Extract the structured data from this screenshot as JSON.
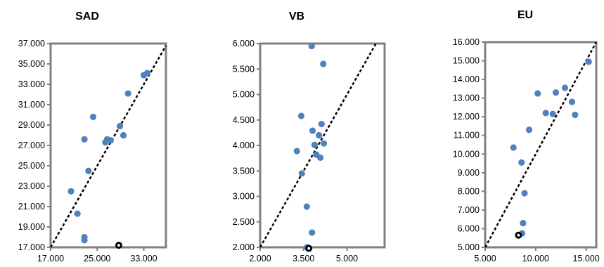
{
  "chart_data": [
    {
      "type": "scatter",
      "title": "SAD",
      "xlim": [
        17000,
        36800
      ],
      "ylim": [
        17000,
        37000
      ],
      "xticks": [
        17000,
        25000,
        33000
      ],
      "xtick_labels": [
        "17.000",
        "25.000",
        "33.000"
      ],
      "yticks": [
        17000,
        19000,
        21000,
        23000,
        25000,
        27000,
        29000,
        31000,
        33000,
        35000,
        37000
      ],
      "ytick_labels": [
        "17.000",
        "19.000",
        "21.000",
        "23.000",
        "25.000",
        "27.000",
        "29.000",
        "31.000",
        "33.000",
        "35.000",
        "37.000"
      ],
      "reference_line": "y = x",
      "series": [
        {
          "marker_color": "#4f81bd",
          "points": [
            {
              "x": 20500,
              "y": 22500
            },
            {
              "x": 21600,
              "y": 20300
            },
            {
              "x": 22800,
              "y": 27600
            },
            {
              "x": 22800,
              "y": 18000
            },
            {
              "x": 22800,
              "y": 17700
            },
            {
              "x": 23500,
              "y": 24500
            },
            {
              "x": 24300,
              "y": 29800
            },
            {
              "x": 26400,
              "y": 27300
            },
            {
              "x": 26700,
              "y": 27600
            },
            {
              "x": 27300,
              "y": 27500
            },
            {
              "x": 28900,
              "y": 28900
            },
            {
              "x": 29500,
              "y": 28000
            },
            {
              "x": 30300,
              "y": 32100
            },
            {
              "x": 33000,
              "y": 33900
            },
            {
              "x": 33600,
              "y": 34100
            }
          ]
        },
        {
          "marker_style": "highlighted",
          "points": [
            {
              "x": 28700,
              "y": 17200
            }
          ]
        }
      ]
    },
    {
      "type": "scatter",
      "title": "VB",
      "xlim": [
        2000,
        6300
      ],
      "ylim": [
        2000,
        6000
      ],
      "xticks": [
        2000,
        3500,
        5000
      ],
      "xtick_labels": [
        "2.000",
        "3.500",
        "5.000"
      ],
      "yticks": [
        2000,
        2500,
        3000,
        3500,
        4000,
        4500,
        5000,
        5500,
        6000
      ],
      "ytick_labels": [
        "2.000",
        "2.500",
        "3.000",
        "3.500",
        "4.000",
        "4.500",
        "5.000",
        "5.500",
        "6.000"
      ],
      "reference_line": "y = x",
      "series": [
        {
          "marker_color": "#4f81bd",
          "points": [
            {
              "x": 3270,
              "y": 3890
            },
            {
              "x": 3420,
              "y": 4580
            },
            {
              "x": 3440,
              "y": 3450
            },
            {
              "x": 3610,
              "y": 2800
            },
            {
              "x": 3620,
              "y": 2000
            },
            {
              "x": 3780,
              "y": 5950
            },
            {
              "x": 3790,
              "y": 2290
            },
            {
              "x": 3810,
              "y": 4290
            },
            {
              "x": 3880,
              "y": 4010
            },
            {
              "x": 3940,
              "y": 3820
            },
            {
              "x": 4030,
              "y": 4200
            },
            {
              "x": 4080,
              "y": 3760
            },
            {
              "x": 4120,
              "y": 4420
            },
            {
              "x": 4180,
              "y": 5600
            },
            {
              "x": 4200,
              "y": 4040
            }
          ]
        },
        {
          "marker_style": "highlighted",
          "points": [
            {
              "x": 3680,
              "y": 1980
            }
          ]
        }
      ]
    },
    {
      "type": "scatter",
      "title": "EU",
      "xlim": [
        5000,
        16000
      ],
      "ylim": [
        5000,
        16000
      ],
      "xticks": [
        5000,
        10000,
        15000
      ],
      "xtick_labels": [
        "5.000",
        "10.000",
        "15.000"
      ],
      "yticks": [
        5000,
        6000,
        7000,
        8000,
        9000,
        10000,
        11000,
        12000,
        13000,
        14000,
        15000,
        16000
      ],
      "ytick_labels": [
        "5.000",
        "6.000",
        "7.000",
        "8.000",
        "9.000",
        "10.000",
        "11.000",
        "12.000",
        "13.000",
        "14.000",
        "15.000",
        "16.000"
      ],
      "reference_line": "y = x",
      "series": [
        {
          "marker_color": "#4f81bd",
          "points": [
            {
              "x": 7800,
              "y": 10350
            },
            {
              "x": 8600,
              "y": 9550
            },
            {
              "x": 8650,
              "y": 5750
            },
            {
              "x": 8750,
              "y": 6300
            },
            {
              "x": 8900,
              "y": 7900
            },
            {
              "x": 9350,
              "y": 11300
            },
            {
              "x": 10200,
              "y": 13250
            },
            {
              "x": 11000,
              "y": 12200
            },
            {
              "x": 11700,
              "y": 12150
            },
            {
              "x": 12000,
              "y": 13300
            },
            {
              "x": 12900,
              "y": 13550
            },
            {
              "x": 13600,
              "y": 12800
            },
            {
              "x": 13900,
              "y": 12100
            },
            {
              "x": 15250,
              "y": 14950
            }
          ]
        },
        {
          "marker_style": "highlighted",
          "points": [
            {
              "x": 8300,
              "y": 5650
            }
          ]
        }
      ]
    }
  ]
}
